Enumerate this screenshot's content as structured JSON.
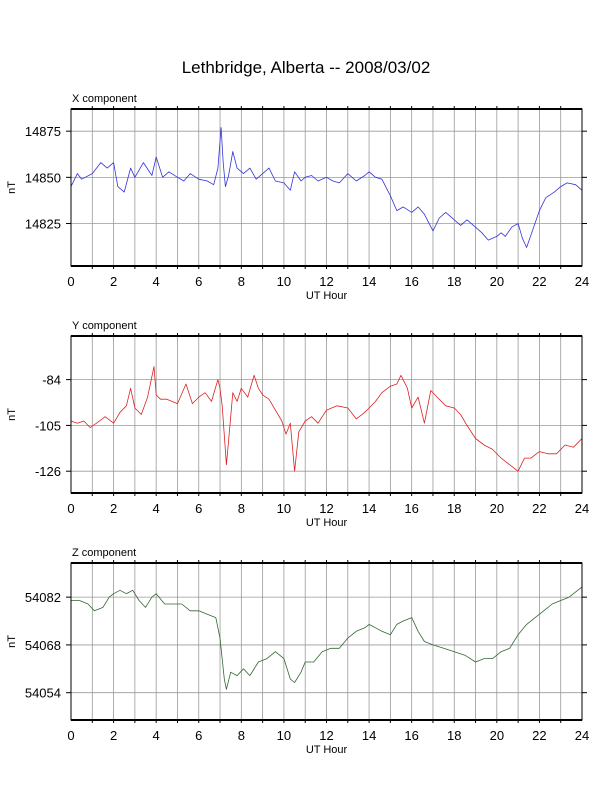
{
  "title": "Lethbridge, Alberta -- 2008/03/02",
  "colors": {
    "grid": "#9a9a9a",
    "axis": "#000000"
  },
  "chart_data": [
    {
      "type": "line",
      "panel_label": "X component",
      "xlabel": "UT Hour",
      "ylabel": "nT",
      "xlim": [
        0,
        24
      ],
      "ylim": [
        14802,
        14887
      ],
      "xticks": [
        "0",
        "2",
        "4",
        "6",
        "8",
        "10",
        "12",
        "14",
        "16",
        "18",
        "20",
        "22",
        "24"
      ],
      "xtick_values": [
        0,
        2,
        4,
        6,
        8,
        10,
        12,
        14,
        16,
        18,
        20,
        22,
        24
      ],
      "yticks": [
        "14825",
        "14850",
        "14875"
      ],
      "ytick_values": [
        14825,
        14850,
        14875
      ],
      "grid": true,
      "series": [
        {
          "color": "#3333dd",
          "x": [
            0,
            0.3,
            0.5,
            1,
            1.4,
            1.7,
            2,
            2.2,
            2.5,
            2.8,
            3,
            3.4,
            3.8,
            4,
            4.3,
            4.6,
            5,
            5.3,
            5.6,
            6,
            6.4,
            6.7,
            6.9,
            7.05,
            7.15,
            7.25,
            7.4,
            7.6,
            7.8,
            8.1,
            8.4,
            8.7,
            9,
            9.3,
            9.6,
            10,
            10.3,
            10.5,
            10.8,
            11,
            11.3,
            11.6,
            12,
            12.3,
            12.6,
            13,
            13.4,
            13.8,
            14,
            14.3,
            14.6,
            15,
            15.3,
            15.6,
            16,
            16.3,
            16.6,
            17,
            17.3,
            17.6,
            18,
            18.3,
            18.6,
            19,
            19.3,
            19.6,
            20,
            20.2,
            20.4,
            20.7,
            21,
            21.2,
            21.4,
            21.7,
            22,
            22.3,
            22.7,
            23,
            23.3,
            23.7,
            24
          ],
          "y": [
            14845,
            14852,
            14849,
            14852,
            14858,
            14855,
            14858,
            14845,
            14842,
            14855,
            14850,
            14858,
            14851,
            14861,
            14850,
            14853,
            14850,
            14848,
            14852,
            14849,
            14848,
            14846,
            14855,
            14877,
            14858,
            14845,
            14851,
            14864,
            14855,
            14852,
            14855,
            14849,
            14852,
            14855,
            14848,
            14847,
            14843,
            14853,
            14848,
            14850,
            14851,
            14848,
            14850,
            14848,
            14847,
            14852,
            14848,
            14851,
            14853,
            14850,
            14849,
            14840,
            14832,
            14834,
            14831,
            14834,
            14830,
            14821,
            14828,
            14831,
            14827,
            14824,
            14827,
            14823,
            14820,
            14816,
            14818,
            14820,
            14818,
            14823,
            14825,
            14817,
            14812,
            14822,
            14832,
            14839,
            14842,
            14845,
            14847,
            14846,
            14843
          ]
        }
      ]
    },
    {
      "type": "line",
      "panel_label": "Y component",
      "xlabel": "UT Hour",
      "ylabel": "nT",
      "xlim": [
        0,
        24
      ],
      "ylim": [
        -136,
        -64
      ],
      "xticks": [
        "0",
        "2",
        "4",
        "6",
        "8",
        "10",
        "12",
        "14",
        "16",
        "18",
        "20",
        "22",
        "24"
      ],
      "xtick_values": [
        0,
        2,
        4,
        6,
        8,
        10,
        12,
        14,
        16,
        18,
        20,
        22,
        24
      ],
      "yticks": [
        "-84",
        "-105",
        "-126"
      ],
      "ytick_values": [
        -84,
        -105,
        -126
      ],
      "grid": true,
      "series": [
        {
          "color": "#dd2222",
          "x": [
            0,
            0.3,
            0.6,
            0.9,
            1.2,
            1.6,
            2,
            2.3,
            2.6,
            2.8,
            3,
            3.3,
            3.6,
            3.9,
            4,
            4.2,
            4.5,
            5,
            5.4,
            5.7,
            6,
            6.3,
            6.6,
            6.9,
            7,
            7.1,
            7.3,
            7.4,
            7.6,
            7.8,
            8,
            8.3,
            8.6,
            8.8,
            9,
            9.3,
            9.6,
            9.9,
            10.1,
            10.3,
            10.5,
            10.7,
            11,
            11.3,
            11.6,
            12,
            12.5,
            13,
            13.4,
            13.8,
            14,
            14.3,
            14.6,
            15,
            15.3,
            15.5,
            15.8,
            16,
            16.3,
            16.6,
            16.9,
            17.2,
            17.6,
            18,
            18.3,
            18.6,
            19,
            19.4,
            19.8,
            20.2,
            20.6,
            21,
            21.3,
            21.6,
            22,
            22.4,
            22.8,
            23.2,
            23.6,
            24
          ],
          "y": [
            -103,
            -104,
            -103,
            -106,
            -104,
            -101,
            -104,
            -99,
            -96,
            -88,
            -97,
            -100,
            -92,
            -78,
            -91,
            -93,
            -93,
            -95,
            -86,
            -95,
            -92,
            -90,
            -94,
            -84,
            -88,
            -96,
            -123,
            -112,
            -90,
            -94,
            -88,
            -92,
            -82,
            -88,
            -91,
            -93,
            -98,
            -103,
            -109,
            -104,
            -126,
            -108,
            -103,
            -101,
            -104,
            -98,
            -96,
            -97,
            -102,
            -99,
            -97,
            -94,
            -90,
            -87,
            -86,
            -82,
            -88,
            -97,
            -92,
            -104,
            -89,
            -92,
            -96,
            -97,
            -100,
            -105,
            -111,
            -114,
            -116,
            -120,
            -123,
            -126,
            -120,
            -120,
            -117,
            -118,
            -118,
            -114,
            -115,
            -111
          ]
        }
      ]
    },
    {
      "type": "line",
      "panel_label": "Z component",
      "xlabel": "UT Hour",
      "ylabel": "nT",
      "xlim": [
        0,
        24
      ],
      "ylim": [
        54046,
        54092
      ],
      "xticks": [
        "0",
        "2",
        "4",
        "6",
        "8",
        "10",
        "12",
        "14",
        "16",
        "18",
        "20",
        "22",
        "24"
      ],
      "xtick_values": [
        0,
        2,
        4,
        6,
        8,
        10,
        12,
        14,
        16,
        18,
        20,
        22,
        24
      ],
      "yticks": [
        "54082",
        "54068",
        "54054"
      ],
      "ytick_values": [
        54082,
        54068,
        54054
      ],
      "grid": true,
      "series": [
        {
          "color": "#336633",
          "x": [
            0,
            0.4,
            0.8,
            1.1,
            1.5,
            1.8,
            2,
            2.3,
            2.6,
            2.9,
            3.2,
            3.5,
            3.8,
            4,
            4.4,
            4.8,
            5.2,
            5.6,
            6,
            6.4,
            6.8,
            7,
            7.2,
            7.3,
            7.5,
            7.8,
            8.1,
            8.4,
            8.8,
            9.2,
            9.6,
            10,
            10.3,
            10.5,
            10.8,
            11,
            11.4,
            11.8,
            12.2,
            12.6,
            13,
            13.4,
            13.8,
            14,
            14.3,
            14.6,
            15,
            15.3,
            15.6,
            16,
            16.3,
            16.6,
            17,
            17.5,
            18,
            18.5,
            19,
            19.4,
            19.8,
            20.2,
            20.6,
            21,
            21.4,
            21.8,
            22.2,
            22.6,
            23,
            23.4,
            23.8,
            24
          ],
          "y": [
            54081,
            54081,
            54080,
            54078,
            54079,
            54082,
            54083,
            54084,
            54083,
            54084,
            54081,
            54079,
            54082,
            54083,
            54080,
            54080,
            54080,
            54078,
            54078,
            54077,
            54076,
            54070,
            54058,
            54055,
            54060,
            54059,
            54061,
            54059,
            54063,
            54064,
            54066,
            54064,
            54058,
            54057,
            54060,
            54063,
            54063,
            54066,
            54067,
            54067,
            54070,
            54072,
            54073,
            54074,
            54073,
            54072,
            54071,
            54074,
            54075,
            54076,
            54072,
            54069,
            54068,
            54067,
            54066,
            54065,
            54063,
            54064,
            54064,
            54066,
            54067,
            54071,
            54074,
            54076,
            54078,
            54080,
            54081,
            54082,
            54084,
            54085
          ]
        }
      ]
    }
  ]
}
